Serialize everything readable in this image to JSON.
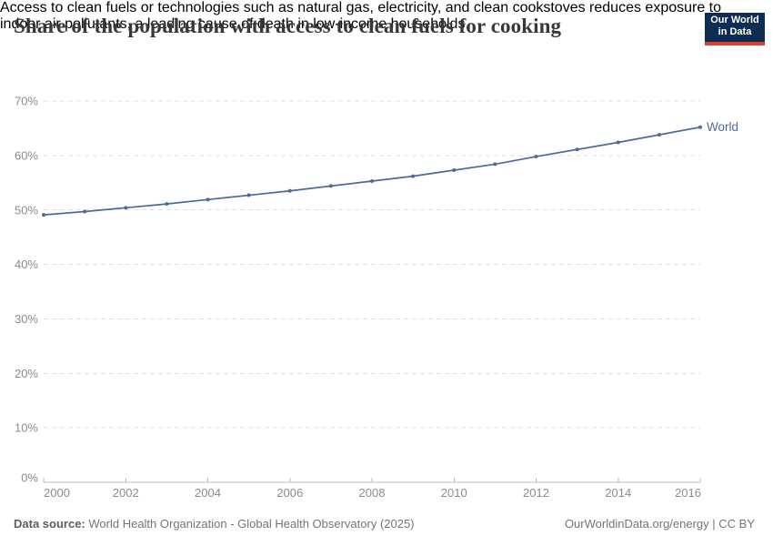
{
  "header": {
    "title": "Share of the population with access to clean fuels for cooking",
    "subtitle_line1": "Access to clean fuels or technologies such as natural gas, electricity, and clean cookstoves reduces exposure to",
    "subtitle_line2": "indoor air pollutants, a leading cause of death in low-income households."
  },
  "logo": {
    "line1": "Our World",
    "line2": "in Data",
    "bg_color": "#0d2d52",
    "stripe_color": "#dc3e32"
  },
  "chart_data": {
    "type": "line",
    "title": "Share of the population with access to clean fuels for cooking",
    "x": [
      2000,
      2001,
      2002,
      2003,
      2004,
      2005,
      2006,
      2007,
      2008,
      2009,
      2010,
      2011,
      2012,
      2013,
      2014,
      2015,
      2016
    ],
    "series": [
      {
        "name": "World",
        "color": "#4C6A9C",
        "values": [
          49.1,
          49.7,
          50.4,
          51.1,
          51.9,
          52.7,
          53.5,
          54.4,
          55.3,
          56.2,
          57.3,
          58.4,
          59.8,
          61.1,
          62.4,
          63.8,
          65.2
        ]
      }
    ],
    "xlabel": "",
    "ylabel": "",
    "ylim": [
      0,
      70
    ],
    "yticks": [
      0,
      10,
      20,
      30,
      40,
      50,
      60,
      70
    ],
    "ytick_suffix": "%",
    "xticks": [
      2000,
      2002,
      2004,
      2006,
      2008,
      2010,
      2012,
      2014,
      2016
    ],
    "grid": "horizontal-dashed",
    "grid_color": "#e0e0e0",
    "axis_color": "#bdbdbd",
    "legend": "line-end-label"
  },
  "footer": {
    "source_label": "Data source:",
    "source_value": "World Health Organization - Global Health Observatory (2025)",
    "credit": "OurWorldinData.org/energy | CC BY"
  }
}
